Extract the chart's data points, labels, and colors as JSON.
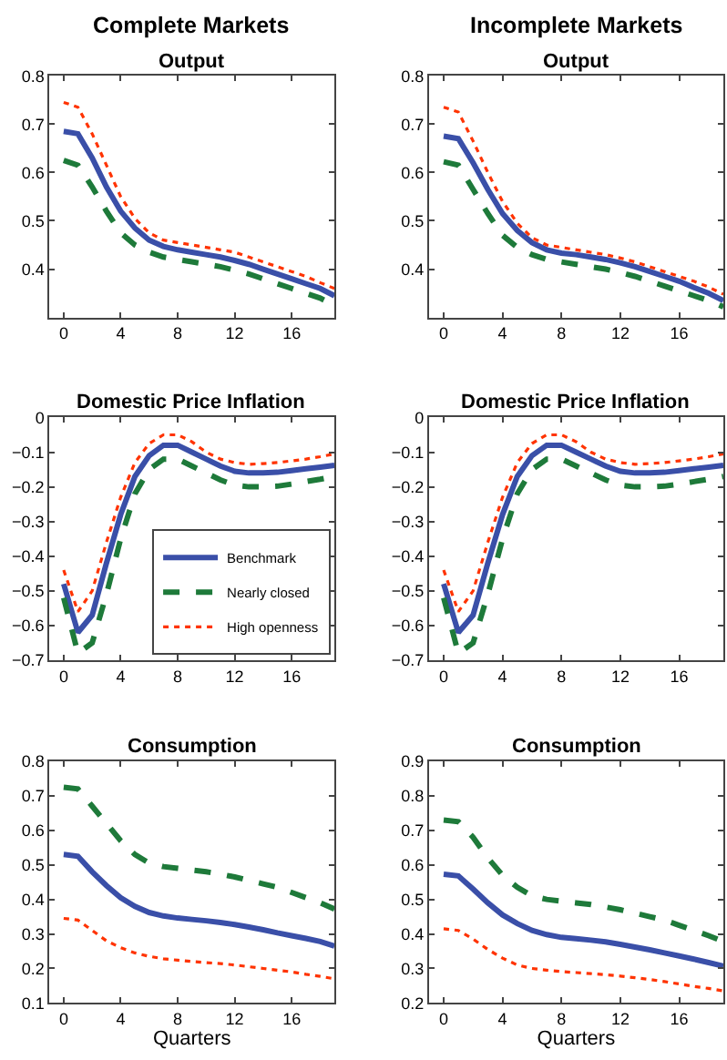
{
  "chart_data": [
    {
      "type": "line",
      "annotations": [
        "Complete Markets"
      ],
      "title": "Output",
      "x": [
        0,
        1,
        2,
        3,
        4,
        5,
        6,
        7,
        8,
        9,
        10,
        11,
        12,
        13,
        14,
        15,
        16,
        17,
        18,
        19
      ],
      "xlim": [
        -1,
        19
      ],
      "xticks": [
        0,
        4,
        8,
        12,
        16
      ],
      "ylim": [
        0.3,
        0.8
      ],
      "yticks": [
        0.4,
        0.5,
        0.6,
        0.7,
        0.8
      ],
      "series": [
        {
          "color": "#3a4fa8",
          "line_style": "solid",
          "values": [
            0.685,
            0.68,
            0.63,
            0.57,
            0.52,
            0.485,
            0.46,
            0.447,
            0.44,
            0.435,
            0.43,
            0.425,
            0.418,
            0.41,
            0.4,
            0.39,
            0.38,
            0.37,
            0.36,
            0.345
          ]
        },
        {
          "color": "#1e7a3a",
          "line_style": "dashed",
          "values": [
            0.625,
            0.615,
            0.57,
            0.52,
            0.475,
            0.45,
            0.435,
            0.425,
            0.42,
            0.415,
            0.41,
            0.405,
            0.398,
            0.39,
            0.38,
            0.37,
            0.36,
            0.35,
            0.34,
            0.325
          ]
        },
        {
          "color": "#ff3300",
          "line_style": "dotted",
          "values": [
            0.745,
            0.735,
            0.68,
            0.615,
            0.55,
            0.505,
            0.475,
            0.46,
            0.455,
            0.45,
            0.445,
            0.44,
            0.435,
            0.425,
            0.415,
            0.405,
            0.395,
            0.385,
            0.372,
            0.36
          ]
        }
      ]
    },
    {
      "type": "line",
      "annotations": [
        "Incomplete Markets"
      ],
      "title": "Output",
      "x": [
        0,
        1,
        2,
        3,
        4,
        5,
        6,
        7,
        8,
        9,
        10,
        11,
        12,
        13,
        14,
        15,
        16,
        17,
        18,
        19
      ],
      "xlim": [
        -1,
        19
      ],
      "xticks": [
        0,
        4,
        8,
        12,
        16
      ],
      "ylim": [
        0.3,
        0.8
      ],
      "yticks": [
        0.4,
        0.5,
        0.6,
        0.7,
        0.8
      ],
      "series": [
        {
          "color": "#3a4fa8",
          "line_style": "solid",
          "values": [
            0.675,
            0.67,
            0.62,
            0.565,
            0.515,
            0.48,
            0.455,
            0.44,
            0.433,
            0.43,
            0.425,
            0.42,
            0.413,
            0.405,
            0.395,
            0.385,
            0.375,
            0.362,
            0.35,
            0.335
          ]
        },
        {
          "color": "#1e7a3a",
          "line_style": "dashed",
          "values": [
            0.622,
            0.615,
            0.565,
            0.515,
            0.47,
            0.445,
            0.43,
            0.42,
            0.415,
            0.41,
            0.405,
            0.4,
            0.393,
            0.385,
            0.375,
            0.365,
            0.355,
            0.345,
            0.335,
            0.322
          ]
        },
        {
          "color": "#ff3300",
          "line_style": "dotted",
          "values": [
            0.735,
            0.725,
            0.665,
            0.6,
            0.54,
            0.495,
            0.465,
            0.45,
            0.445,
            0.44,
            0.435,
            0.43,
            0.423,
            0.415,
            0.405,
            0.395,
            0.385,
            0.375,
            0.363,
            0.348
          ]
        }
      ]
    },
    {
      "type": "line",
      "title": "Domestic Price Inflation",
      "x": [
        0,
        1,
        2,
        3,
        4,
        5,
        6,
        7,
        8,
        9,
        10,
        11,
        12,
        13,
        14,
        15,
        16,
        17,
        18,
        19
      ],
      "xlim": [
        -1,
        19
      ],
      "xticks": [
        0,
        4,
        8,
        12,
        16
      ],
      "ylim": [
        -0.7,
        0
      ],
      "yticks": [
        -0.7,
        -0.6,
        -0.5,
        -0.4,
        -0.3,
        -0.2,
        -0.1,
        0
      ],
      "legend": "bottom right",
      "series": [
        {
          "name": "Benchmark",
          "color": "#3a4fa8",
          "line_style": "solid",
          "values": [
            -0.48,
            -0.62,
            -0.57,
            -0.42,
            -0.28,
            -0.17,
            -0.11,
            -0.08,
            -0.08,
            -0.1,
            -0.12,
            -0.14,
            -0.155,
            -0.16,
            -0.16,
            -0.158,
            -0.153,
            -0.148,
            -0.143,
            -0.138
          ]
        },
        {
          "name": "Nearly closed",
          "color": "#1e7a3a",
          "line_style": "dashed",
          "values": [
            -0.52,
            -0.68,
            -0.65,
            -0.51,
            -0.35,
            -0.22,
            -0.15,
            -0.12,
            -0.12,
            -0.14,
            -0.16,
            -0.18,
            -0.195,
            -0.2,
            -0.2,
            -0.198,
            -0.192,
            -0.185,
            -0.178,
            -0.17
          ]
        },
        {
          "name": "High openness",
          "color": "#ff3300",
          "line_style": "dotted",
          "values": [
            -0.44,
            -0.56,
            -0.5,
            -0.36,
            -0.23,
            -0.13,
            -0.075,
            -0.05,
            -0.05,
            -0.07,
            -0.1,
            -0.12,
            -0.13,
            -0.135,
            -0.133,
            -0.13,
            -0.125,
            -0.12,
            -0.113,
            -0.105
          ]
        }
      ]
    },
    {
      "type": "line",
      "title": "Domestic Price Inflation",
      "x": [
        0,
        1,
        2,
        3,
        4,
        5,
        6,
        7,
        8,
        9,
        10,
        11,
        12,
        13,
        14,
        15,
        16,
        17,
        18,
        19
      ],
      "xlim": [
        -1,
        19
      ],
      "xticks": [
        0,
        4,
        8,
        12,
        16
      ],
      "ylim": [
        -0.7,
        0
      ],
      "yticks": [
        -0.7,
        -0.6,
        -0.5,
        -0.4,
        -0.3,
        -0.2,
        -0.1,
        0
      ],
      "series": [
        {
          "color": "#3a4fa8",
          "line_style": "solid",
          "values": [
            -0.48,
            -0.62,
            -0.57,
            -0.42,
            -0.28,
            -0.17,
            -0.11,
            -0.08,
            -0.08,
            -0.1,
            -0.12,
            -0.14,
            -0.155,
            -0.16,
            -0.16,
            -0.158,
            -0.153,
            -0.148,
            -0.143,
            -0.138
          ]
        },
        {
          "color": "#1e7a3a",
          "line_style": "dashed",
          "values": [
            -0.52,
            -0.68,
            -0.65,
            -0.51,
            -0.35,
            -0.22,
            -0.15,
            -0.12,
            -0.12,
            -0.14,
            -0.16,
            -0.18,
            -0.195,
            -0.2,
            -0.2,
            -0.198,
            -0.192,
            -0.185,
            -0.178,
            -0.17
          ]
        },
        {
          "color": "#ff3300",
          "line_style": "dotted",
          "values": [
            -0.44,
            -0.56,
            -0.5,
            -0.36,
            -0.23,
            -0.13,
            -0.075,
            -0.05,
            -0.05,
            -0.07,
            -0.1,
            -0.12,
            -0.13,
            -0.135,
            -0.133,
            -0.13,
            -0.125,
            -0.12,
            -0.113,
            -0.105
          ]
        }
      ]
    },
    {
      "type": "line",
      "title": "Consumption",
      "xlabel": "Quarters",
      "x": [
        0,
        1,
        2,
        3,
        4,
        5,
        6,
        7,
        8,
        9,
        10,
        11,
        12,
        13,
        14,
        15,
        16,
        17,
        18,
        19
      ],
      "xlim": [
        -1,
        19
      ],
      "xticks": [
        0,
        4,
        8,
        12,
        16
      ],
      "ylim": [
        0.1,
        0.8
      ],
      "yticks": [
        0.1,
        0.2,
        0.3,
        0.4,
        0.5,
        0.6,
        0.7,
        0.8
      ],
      "series": [
        {
          "color": "#3a4fa8",
          "line_style": "solid",
          "values": [
            0.53,
            0.525,
            0.48,
            0.44,
            0.405,
            0.38,
            0.362,
            0.352,
            0.346,
            0.342,
            0.338,
            0.333,
            0.327,
            0.32,
            0.312,
            0.303,
            0.295,
            0.287,
            0.278,
            0.265
          ]
        },
        {
          "color": "#1e7a3a",
          "line_style": "dashed",
          "values": [
            0.725,
            0.72,
            0.67,
            0.62,
            0.57,
            0.53,
            0.505,
            0.495,
            0.49,
            0.485,
            0.48,
            0.473,
            0.465,
            0.455,
            0.445,
            0.435,
            0.42,
            0.405,
            0.39,
            0.372
          ]
        },
        {
          "color": "#ff3300",
          "line_style": "dotted",
          "values": [
            0.345,
            0.34,
            0.31,
            0.28,
            0.26,
            0.245,
            0.235,
            0.228,
            0.224,
            0.22,
            0.217,
            0.214,
            0.21,
            0.205,
            0.2,
            0.195,
            0.19,
            0.183,
            0.177,
            0.17
          ]
        }
      ]
    },
    {
      "type": "line",
      "title": "Consumption",
      "xlabel": "Quarters",
      "x": [
        0,
        1,
        2,
        3,
        4,
        5,
        6,
        7,
        8,
        9,
        10,
        11,
        12,
        13,
        14,
        15,
        16,
        17,
        18,
        19
      ],
      "xlim": [
        -1,
        19
      ],
      "xticks": [
        0,
        4,
        8,
        12,
        16
      ],
      "ylim": [
        0.2,
        0.9
      ],
      "yticks": [
        0.2,
        0.3,
        0.4,
        0.5,
        0.6,
        0.7,
        0.8,
        0.9
      ],
      "series": [
        {
          "color": "#3a4fa8",
          "line_style": "solid",
          "values": [
            0.573,
            0.568,
            0.53,
            0.49,
            0.455,
            0.43,
            0.41,
            0.398,
            0.39,
            0.386,
            0.382,
            0.377,
            0.37,
            0.362,
            0.354,
            0.345,
            0.336,
            0.327,
            0.317,
            0.307
          ]
        },
        {
          "color": "#1e7a3a",
          "line_style": "dashed",
          "values": [
            0.73,
            0.725,
            0.68,
            0.62,
            0.57,
            0.535,
            0.51,
            0.5,
            0.495,
            0.49,
            0.485,
            0.478,
            0.47,
            0.46,
            0.45,
            0.44,
            0.425,
            0.41,
            0.395,
            0.378
          ]
        },
        {
          "color": "#ff3300",
          "line_style": "dotted",
          "values": [
            0.415,
            0.41,
            0.385,
            0.355,
            0.33,
            0.31,
            0.3,
            0.295,
            0.291,
            0.288,
            0.285,
            0.282,
            0.278,
            0.273,
            0.268,
            0.262,
            0.255,
            0.248,
            0.242,
            0.235
          ]
        }
      ]
    }
  ]
}
